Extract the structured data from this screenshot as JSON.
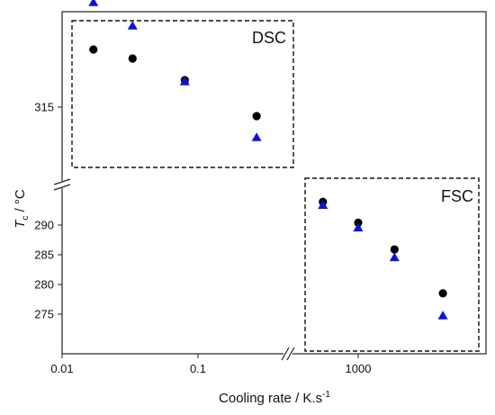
{
  "chart_data": {
    "type": "scatter",
    "title": "",
    "xlabel": "Cooling rate / K.s",
    "xlabel_superscript": "-1",
    "ylabel_main": "T",
    "ylabel_sub": "c",
    "ylabel_unit": " / °C",
    "x_scale": "log",
    "x_axis_break": true,
    "y_axis_break": true,
    "grid": false,
    "x_ticks": [
      {
        "value": 0.01,
        "label": "0.01"
      },
      {
        "value": 0.1,
        "label": "0.1"
      },
      {
        "value": 1000,
        "label": "1000"
      }
    ],
    "y_ticks": [
      {
        "value": 315,
        "label": "315"
      },
      {
        "value": 290,
        "label": "290"
      },
      {
        "value": 285,
        "label": "285"
      },
      {
        "value": 280,
        "label": "280"
      },
      {
        "value": 275,
        "label": "275"
      }
    ],
    "boxes": [
      {
        "label": "DSC",
        "region": "left-upper"
      },
      {
        "label": "FSC",
        "region": "right-lower"
      }
    ],
    "series": [
      {
        "marker": "circle",
        "color": "#000000",
        "points": [
          {
            "x": 0.017,
            "y": 318.2
          },
          {
            "x": 0.033,
            "y": 317.7
          },
          {
            "x": 0.08,
            "y": 316.5
          },
          {
            "x": 0.27,
            "y": 314.5
          },
          {
            "x": 550,
            "y": 293.9
          },
          {
            "x": 1000,
            "y": 290.4
          },
          {
            "x": 1850,
            "y": 285.9
          },
          {
            "x": 4200,
            "y": 278.5
          }
        ]
      },
      {
        "marker": "triangle",
        "color": "#0a14d6",
        "points": [
          {
            "x": 0.017,
            "y": 320.8
          },
          {
            "x": 0.033,
            "y": 319.5
          },
          {
            "x": 0.08,
            "y": 316.4
          },
          {
            "x": 0.27,
            "y": 313.3
          },
          {
            "x": 550,
            "y": 293.3
          },
          {
            "x": 1000,
            "y": 289.5
          },
          {
            "x": 1850,
            "y": 284.5
          },
          {
            "x": 4200,
            "y": 274.7
          }
        ]
      }
    ]
  }
}
